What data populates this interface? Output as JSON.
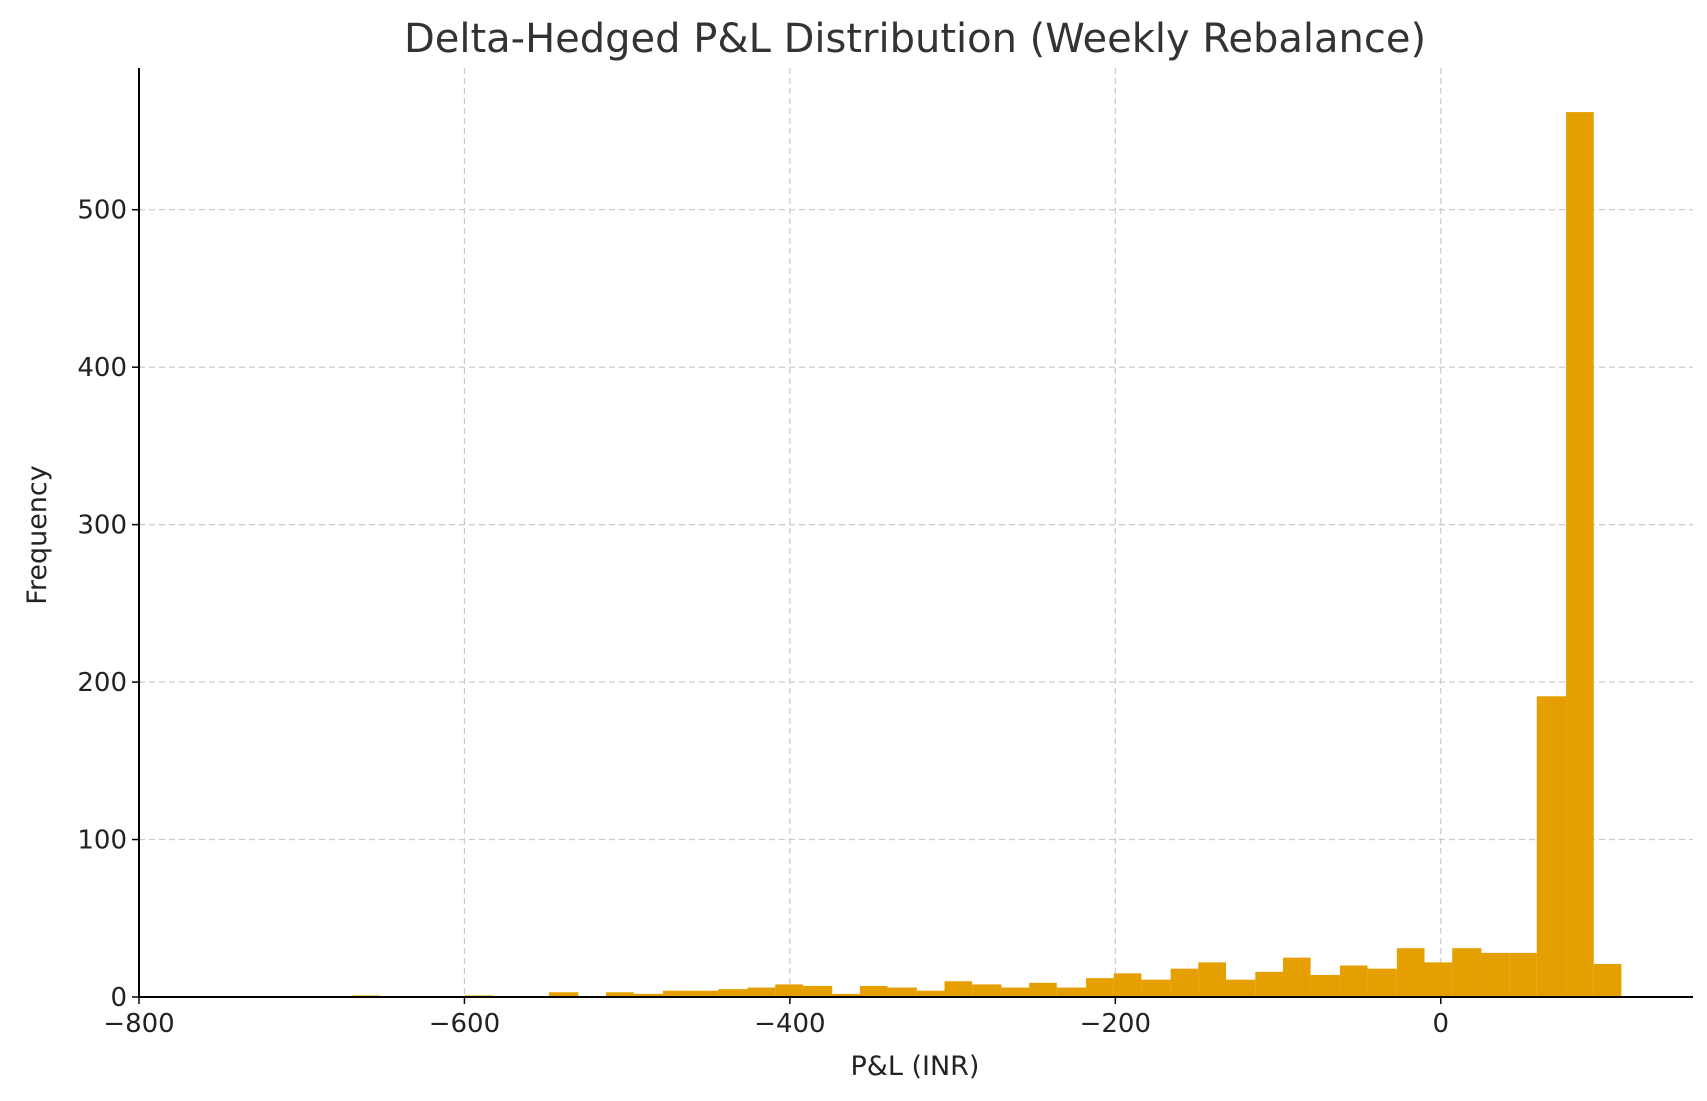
{
  "chart_data": {
    "type": "bar",
    "title": "Delta-Hedged P&L Distribution (Weekly Rebalance)",
    "xlabel": "P&L (INR)",
    "ylabel": "Frequency",
    "xlim": [
      -800,
      155
    ],
    "ylim": [
      0,
      590
    ],
    "xticks": [
      -800,
      -600,
      -400,
      -200,
      0
    ],
    "xtick_labels": [
      "−800",
      "−600",
      "−400",
      "−200",
      "0"
    ],
    "yticks": [
      0,
      100,
      200,
      300,
      400,
      500
    ],
    "ytick_labels": [
      "0",
      "100",
      "200",
      "300",
      "400",
      "500"
    ],
    "grid": true,
    "bar_color": "#E69F00",
    "bins": [
      {
        "x0": -669,
        "x1": -652,
        "count": 1
      },
      {
        "x0": -652,
        "x1": -634,
        "count": 0
      },
      {
        "x0": -634,
        "x1": -617,
        "count": 0
      },
      {
        "x0": -617,
        "x1": -600,
        "count": 0
      },
      {
        "x0": -600,
        "x1": -582,
        "count": 1
      },
      {
        "x0": -582,
        "x1": -565,
        "count": 0
      },
      {
        "x0": -565,
        "x1": -548,
        "count": 0
      },
      {
        "x0": -548,
        "x1": -530,
        "count": 3
      },
      {
        "x0": -530,
        "x1": -513,
        "count": 0
      },
      {
        "x0": -513,
        "x1": -496,
        "count": 3
      },
      {
        "x0": -496,
        "x1": -478,
        "count": 2
      },
      {
        "x0": -478,
        "x1": -461,
        "count": 4
      },
      {
        "x0": -461,
        "x1": -444,
        "count": 4
      },
      {
        "x0": -444,
        "x1": -426,
        "count": 5
      },
      {
        "x0": -426,
        "x1": -409,
        "count": 6
      },
      {
        "x0": -409,
        "x1": -392,
        "count": 8
      },
      {
        "x0": -392,
        "x1": -374,
        "count": 7
      },
      {
        "x0": -374,
        "x1": -357,
        "count": 2
      },
      {
        "x0": -357,
        "x1": -340,
        "count": 7
      },
      {
        "x0": -340,
        "x1": -322,
        "count": 6
      },
      {
        "x0": -322,
        "x1": -305,
        "count": 4
      },
      {
        "x0": -305,
        "x1": -288,
        "count": 10
      },
      {
        "x0": -288,
        "x1": -270,
        "count": 8
      },
      {
        "x0": -270,
        "x1": -253,
        "count": 6
      },
      {
        "x0": -253,
        "x1": -236,
        "count": 9
      },
      {
        "x0": -236,
        "x1": -218,
        "count": 6
      },
      {
        "x0": -218,
        "x1": -201,
        "count": 12
      },
      {
        "x0": -201,
        "x1": -184,
        "count": 15
      },
      {
        "x0": -184,
        "x1": -166,
        "count": 11
      },
      {
        "x0": -166,
        "x1": -149,
        "count": 18
      },
      {
        "x0": -149,
        "x1": -132,
        "count": 22
      },
      {
        "x0": -132,
        "x1": -114,
        "count": 11
      },
      {
        "x0": -114,
        "x1": -97,
        "count": 16
      },
      {
        "x0": -97,
        "x1": -80,
        "count": 25
      },
      {
        "x0": -80,
        "x1": -62,
        "count": 14
      },
      {
        "x0": -62,
        "x1": -45,
        "count": 20
      },
      {
        "x0": -45,
        "x1": -27,
        "count": 18
      },
      {
        "x0": -27,
        "x1": -10,
        "count": 31
      },
      {
        "x0": -10,
        "x1": 7,
        "count": 22
      },
      {
        "x0": 7,
        "x1": 25,
        "count": 31
      },
      {
        "x0": 25,
        "x1": 42,
        "count": 28
      },
      {
        "x0": 42,
        "x1": 59,
        "count": 28
      },
      {
        "x0": 59,
        "x1": 77,
        "count": 191
      },
      {
        "x0": 77,
        "x1": 94,
        "count": 562
      },
      {
        "x0": 94,
        "x1": 111,
        "count": 21
      }
    ]
  }
}
